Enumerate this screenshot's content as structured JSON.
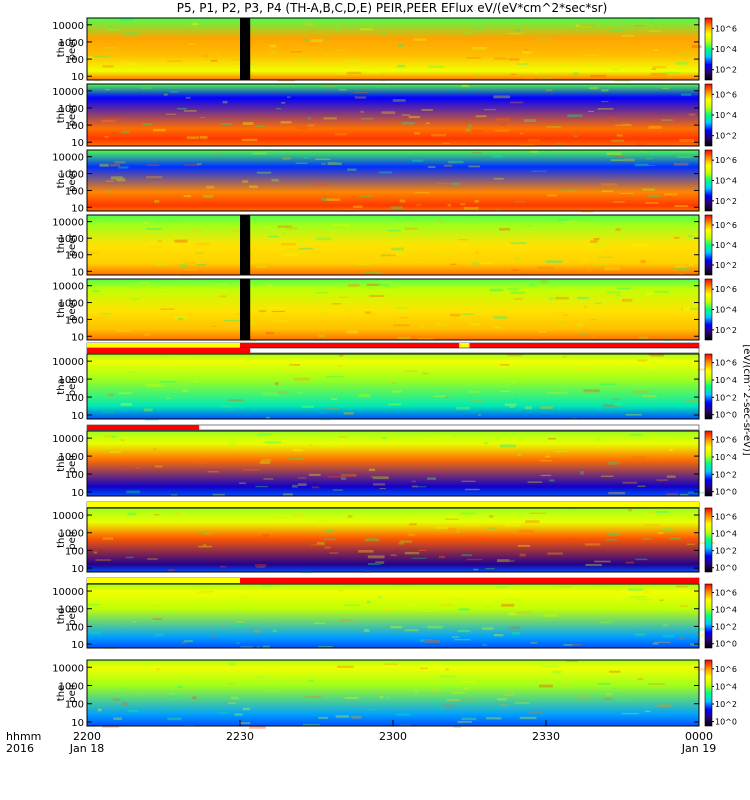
{
  "title": "P5, P1, P2, P3, P4 (TH-A,B,C,D,E) PEIR,PEER EFlux eV/(eV*cm^2*sec*sr)",
  "colorbar_label": "[eV/(cm^2-sec-sr-eV)]",
  "colormap": [
    "#000000",
    "#2a0070",
    "#0000ff",
    "#00c8ff",
    "#00ff80",
    "#c8ff00",
    "#ffff00",
    "#ff8c00",
    "#ff0000"
  ],
  "chart_data": {
    "type": "heatmap",
    "x_axis": {
      "row_labels": [
        "hhmm",
        "2016"
      ],
      "ticks": [
        {
          "time": "2200",
          "date": "Jan 18",
          "minutes": 0
        },
        {
          "time": "2230",
          "date": "",
          "minutes": 30
        },
        {
          "time": "2300",
          "date": "",
          "minutes": 60
        },
        {
          "time": "2330",
          "date": "",
          "minutes": 90
        },
        {
          "time": "0000",
          "date": "Jan 19",
          "minutes": 120
        }
      ],
      "range_minutes": [
        0,
        120
      ]
    },
    "y_axis": {
      "scale": "log",
      "range_eV": [
        6,
        25000
      ],
      "ticks": [
        "10",
        "100",
        "1000",
        "10000"
      ]
    },
    "colorbar": {
      "scale": "log",
      "peer_ticks": [
        "10^2",
        "10^4",
        "10^6"
      ],
      "peir_ticks": [
        "10^0",
        "10^2",
        "10^4",
        "10^6"
      ]
    },
    "panels": [
      {
        "probe": "tha",
        "product": "peer",
        "species": "electron",
        "gap_minutes": [
          30,
          32
        ],
        "flag_bar": [],
        "bands": [
          {
            "log10_eV": 1.3,
            "level": 0.72
          },
          {
            "log10_eV": 2.2,
            "level": 0.82
          },
          {
            "log10_eV": 3.2,
            "level": 0.85
          }
        ]
      },
      {
        "probe": "thb",
        "product": "peer",
        "species": "electron",
        "gap_minutes": [],
        "flag_bar": [],
        "bands": [
          {
            "log10_eV": 1.2,
            "level": 0.95
          },
          {
            "log10_eV": 1.8,
            "level": 0.9
          },
          {
            "log10_eV": 3.6,
            "level": 0.25
          }
        ]
      },
      {
        "probe": "thc",
        "product": "peer",
        "species": "electron",
        "gap_minutes": [],
        "flag_bar": [],
        "bands": [
          {
            "log10_eV": 1.1,
            "level": 0.95
          },
          {
            "log10_eV": 1.9,
            "level": 0.88
          },
          {
            "log10_eV": 3.4,
            "level": 0.28
          }
        ]
      },
      {
        "probe": "thd",
        "product": "peer",
        "species": "electron",
        "gap_minutes": [
          30,
          32
        ],
        "flag_bar": [],
        "bands": [
          {
            "log10_eV": 1.5,
            "level": 0.8
          },
          {
            "log10_eV": 2.6,
            "level": 0.78
          },
          {
            "log10_eV": 3.8,
            "level": 0.6
          }
        ]
      },
      {
        "probe": "the",
        "product": "peer",
        "species": "electron",
        "gap_minutes": [
          30,
          32
        ],
        "flag_bar": [
          {
            "from": 0,
            "to": 30,
            "color": "#ffff00"
          },
          {
            "from": 30,
            "to": 73,
            "color": "#ff0000"
          },
          {
            "from": 73,
            "to": 75,
            "color": "#ffff00"
          },
          {
            "from": 75,
            "to": 120,
            "color": "#ff0000"
          }
        ],
        "bands": [
          {
            "log10_eV": 1.4,
            "level": 0.82
          },
          {
            "log10_eV": 2.5,
            "level": 0.78
          },
          {
            "log10_eV": 3.8,
            "level": 0.62
          }
        ]
      },
      {
        "probe": "tha",
        "product": "peir",
        "species": "ion",
        "gap_minutes": [],
        "flag_bar": [
          {
            "from": 0,
            "to": 32,
            "color": "#ff0000"
          }
        ],
        "bands": [
          {
            "log10_eV": 1.5,
            "level": 0.45
          },
          {
            "log10_eV": 3.0,
            "level": 0.6
          },
          {
            "log10_eV": 4.0,
            "level": 0.72
          }
        ]
      },
      {
        "probe": "thb",
        "product": "peir",
        "species": "ion",
        "gap_minutes": [],
        "flag_bar": [
          {
            "from": 0,
            "to": 22,
            "color": "#ff0000"
          }
        ],
        "bands": [
          {
            "log10_eV": 1.3,
            "level": 0.2
          },
          {
            "log10_eV": 2.8,
            "level": 0.9
          },
          {
            "log10_eV": 3.7,
            "level": 0.7
          }
        ]
      },
      {
        "probe": "thc",
        "product": "peir",
        "species": "ion",
        "gap_minutes": [],
        "flag_bar": [
          {
            "from": 0,
            "to": 120,
            "color": "#ffff00"
          }
        ],
        "bands": [
          {
            "log10_eV": 1.2,
            "level": 0.15
          },
          {
            "log10_eV": 2.7,
            "level": 0.92
          },
          {
            "log10_eV": 3.6,
            "level": 0.7
          }
        ]
      },
      {
        "probe": "thd",
        "product": "peir",
        "species": "ion",
        "gap_minutes": [],
        "flag_bar": [
          {
            "from": 0,
            "to": 30,
            "color": "#ffff00"
          },
          {
            "from": 30,
            "to": 120,
            "color": "#ff0000"
          }
        ],
        "bands": [
          {
            "log10_eV": 1.4,
            "level": 0.35
          },
          {
            "log10_eV": 3.0,
            "level": 0.62
          },
          {
            "log10_eV": 4.0,
            "level": 0.72
          }
        ]
      },
      {
        "probe": "the",
        "product": "peir",
        "species": "ion",
        "gap_minutes": [],
        "flag_bar": [],
        "bands": [
          {
            "log10_eV": 1.4,
            "level": 0.35
          },
          {
            "log10_eV": 3.0,
            "level": 0.6
          },
          {
            "log10_eV": 4.0,
            "level": 0.72
          }
        ]
      }
    ]
  }
}
